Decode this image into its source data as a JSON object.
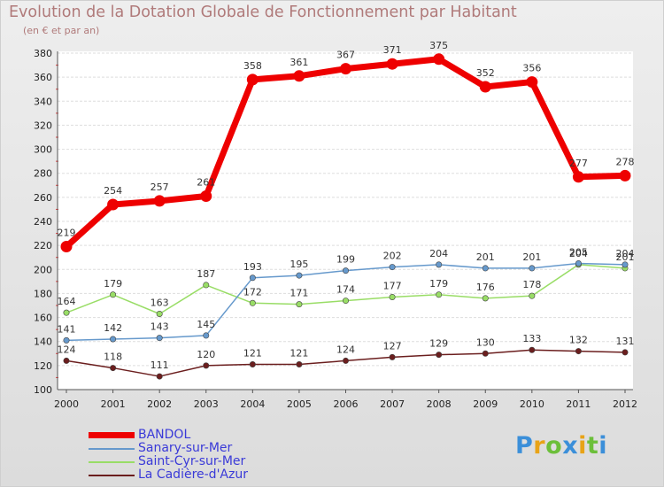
{
  "title": "Evolution de la Dotation Globale de Fonctionnement par Habitant",
  "subtitle": "(en € et par an)",
  "chart_data": {
    "type": "line",
    "title": "Evolution de la Dotation Globale de Fonctionnement par Habitant",
    "subtitle": "(en € et par an)",
    "xlabel": "",
    "ylabel": "",
    "ylim": [
      100,
      380
    ],
    "yticks": [
      100,
      120,
      140,
      160,
      180,
      200,
      220,
      240,
      260,
      280,
      300,
      320,
      340,
      360,
      380
    ],
    "grid": true,
    "x": [
      "2000",
      "2001",
      "2002",
      "2003",
      "2004",
      "2005",
      "2006",
      "2007",
      "2008",
      "2009",
      "2010",
      "2011",
      "2012"
    ],
    "series": [
      {
        "name": "BANDOL",
        "color": "#ee0000",
        "values": [
          219,
          254,
          257,
          261,
          358,
          361,
          367,
          371,
          375,
          352,
          356,
          277,
          278
        ]
      },
      {
        "name": "Sanary-sur-Mer",
        "color": "#6699cc",
        "values": [
          141,
          142,
          143,
          145,
          193,
          195,
          199,
          202,
          204,
          201,
          201,
          205,
          204
        ]
      },
      {
        "name": "Saint-Cyr-sur-Mer",
        "color": "#99dd66",
        "values": [
          164,
          179,
          163,
          187,
          172,
          171,
          174,
          177,
          179,
          176,
          178,
          204,
          201
        ]
      },
      {
        "name": "La Cadière-d'Azur",
        "color": "#6b1e1e",
        "values": [
          124,
          118,
          111,
          120,
          121,
          121,
          124,
          127,
          129,
          130,
          133,
          132,
          131
        ]
      }
    ]
  },
  "legend": {
    "items": [
      {
        "label": "BANDOL",
        "color": "#ee0000"
      },
      {
        "label": "Sanary-sur-Mer",
        "color": "#6699cc"
      },
      {
        "label": "Saint-Cyr-sur-Mer",
        "color": "#99dd66"
      },
      {
        "label": "La Cadière-d'Azur",
        "color": "#6b1e1e"
      }
    ]
  },
  "logo": {
    "letters": [
      "P",
      "r",
      "o",
      "x",
      "i",
      "t",
      "i"
    ],
    "colors": [
      "#3b8fd9",
      "#e8a317",
      "#6cbf3a",
      "#3b8fd9",
      "#e8a317",
      "#6cbf3a",
      "#3b8fd9"
    ]
  }
}
